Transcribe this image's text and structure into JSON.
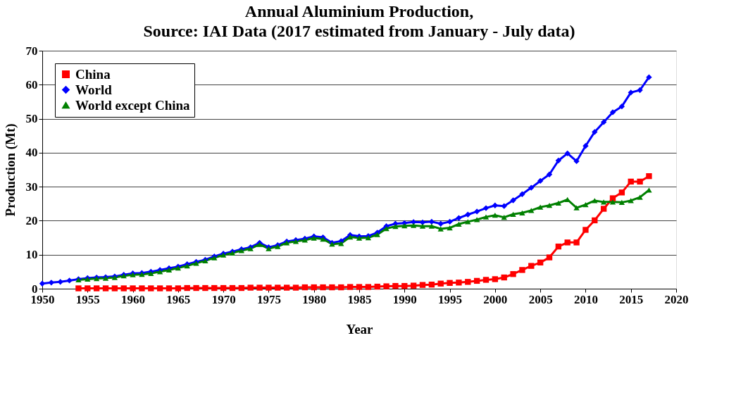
{
  "chart_data": {
    "type": "line",
    "title": "Annual  Aluminium Production,",
    "subtitle": "Source: IAI Data (2017 estimated from January - July data)",
    "xlabel": "Year",
    "ylabel": "Production (Mt)",
    "xlim": [
      1950,
      2020
    ],
    "xticks": [
      1950,
      1955,
      1960,
      1965,
      1970,
      1975,
      1980,
      1985,
      1990,
      1995,
      2000,
      2005,
      2010,
      2015,
      2020
    ],
    "ylim": [
      0,
      70
    ],
    "yticks": [
      0,
      10,
      20,
      30,
      40,
      50,
      60,
      70
    ],
    "grid": "y",
    "legend": "top left",
    "series": [
      {
        "name": "China",
        "color": "#ff0000",
        "marker": "square",
        "x": [
          1954,
          1955,
          1956,
          1957,
          1958,
          1959,
          1960,
          1961,
          1962,
          1963,
          1964,
          1965,
          1966,
          1967,
          1968,
          1969,
          1970,
          1971,
          1972,
          1973,
          1974,
          1975,
          1976,
          1977,
          1978,
          1979,
          1980,
          1981,
          1982,
          1983,
          1984,
          1985,
          1986,
          1987,
          1988,
          1989,
          1990,
          1991,
          1992,
          1993,
          1994,
          1995,
          1996,
          1997,
          1998,
          1999,
          2000,
          2001,
          2002,
          2003,
          2004,
          2005,
          2006,
          2007,
          2008,
          2009,
          2010,
          2011,
          2012,
          2013,
          2014,
          2015,
          2016,
          2017
        ],
        "values": [
          0.1,
          0.1,
          0.1,
          0.1,
          0.1,
          0.1,
          0.1,
          0.1,
          0.1,
          0.1,
          0.1,
          0.1,
          0.2,
          0.2,
          0.2,
          0.2,
          0.2,
          0.2,
          0.2,
          0.3,
          0.3,
          0.3,
          0.3,
          0.3,
          0.3,
          0.4,
          0.4,
          0.4,
          0.4,
          0.4,
          0.5,
          0.5,
          0.5,
          0.6,
          0.7,
          0.8,
          0.8,
          0.9,
          1.1,
          1.2,
          1.5,
          1.7,
          1.8,
          2.0,
          2.3,
          2.6,
          2.8,
          3.3,
          4.3,
          5.5,
          6.7,
          7.7,
          9.2,
          12.4,
          13.6,
          13.6,
          17.3,
          20.1,
          23.5,
          26.6,
          28.3,
          31.5,
          31.5,
          33.1
        ]
      },
      {
        "name": "World",
        "color": "#0000ff",
        "marker": "diamond",
        "x": [
          1950,
          1951,
          1952,
          1953,
          1954,
          1955,
          1956,
          1957,
          1958,
          1959,
          1960,
          1961,
          1962,
          1963,
          1964,
          1965,
          1966,
          1967,
          1968,
          1969,
          1970,
          1971,
          1972,
          1973,
          1974,
          1975,
          1976,
          1977,
          1978,
          1979,
          1980,
          1981,
          1982,
          1983,
          1984,
          1985,
          1986,
          1987,
          1988,
          1989,
          1990,
          1991,
          1992,
          1993,
          1994,
          1995,
          1996,
          1997,
          1998,
          1999,
          2000,
          2001,
          2002,
          2003,
          2004,
          2005,
          2006,
          2007,
          2008,
          2009,
          2010,
          2011,
          2012,
          2013,
          2014,
          2015,
          2016,
          2017
        ],
        "values": [
          1.5,
          1.8,
          2.0,
          2.4,
          2.8,
          3.1,
          3.3,
          3.4,
          3.6,
          4.1,
          4.5,
          4.6,
          5.0,
          5.5,
          6.0,
          6.5,
          7.2,
          7.9,
          8.5,
          9.5,
          10.3,
          10.9,
          11.6,
          12.2,
          13.5,
          12.2,
          12.8,
          13.9,
          14.3,
          14.7,
          15.4,
          15.1,
          13.5,
          14.0,
          15.8,
          15.4,
          15.5,
          16.5,
          18.4,
          19.1,
          19.3,
          19.6,
          19.5,
          19.7,
          19.1,
          19.7,
          20.8,
          21.8,
          22.7,
          23.7,
          24.5,
          24.3,
          26.0,
          27.8,
          29.7,
          31.7,
          33.6,
          37.7,
          39.8,
          37.5,
          42.0,
          46.1,
          49.0,
          51.9,
          53.6,
          57.7,
          58.4,
          62.2
        ]
      },
      {
        "name": "World except China",
        "color": "#008000",
        "marker": "triangle",
        "x": [
          1954,
          1955,
          1956,
          1957,
          1958,
          1959,
          1960,
          1961,
          1962,
          1963,
          1964,
          1965,
          1966,
          1967,
          1968,
          1969,
          1970,
          1971,
          1972,
          1973,
          1974,
          1975,
          1976,
          1977,
          1978,
          1979,
          1980,
          1981,
          1982,
          1983,
          1984,
          1985,
          1986,
          1987,
          1988,
          1989,
          1990,
          1991,
          1992,
          1993,
          1994,
          1995,
          1996,
          1997,
          1998,
          1999,
          2000,
          2001,
          2002,
          2003,
          2004,
          2005,
          2006,
          2007,
          2008,
          2009,
          2010,
          2011,
          2012,
          2013,
          2014,
          2015,
          2016,
          2017
        ],
        "values": [
          2.6,
          2.8,
          3.0,
          3.1,
          3.3,
          3.8,
          4.1,
          4.2,
          4.5,
          5.0,
          5.5,
          6.1,
          6.7,
          7.5,
          8.2,
          9.1,
          9.9,
          10.5,
          11.2,
          11.8,
          13.0,
          11.8,
          12.4,
          13.5,
          13.9,
          14.3,
          14.9,
          14.6,
          13.1,
          13.3,
          15.2,
          14.9,
          15.0,
          15.9,
          17.7,
          18.3,
          18.5,
          18.6,
          18.4,
          18.4,
          17.6,
          17.9,
          19.0,
          19.7,
          20.3,
          21.1,
          21.6,
          21.0,
          21.9,
          22.3,
          23.0,
          24.0,
          24.5,
          25.2,
          26.2,
          23.8,
          24.7,
          25.9,
          25.5,
          25.5,
          25.4,
          25.9,
          26.9,
          29.0
        ]
      }
    ]
  }
}
